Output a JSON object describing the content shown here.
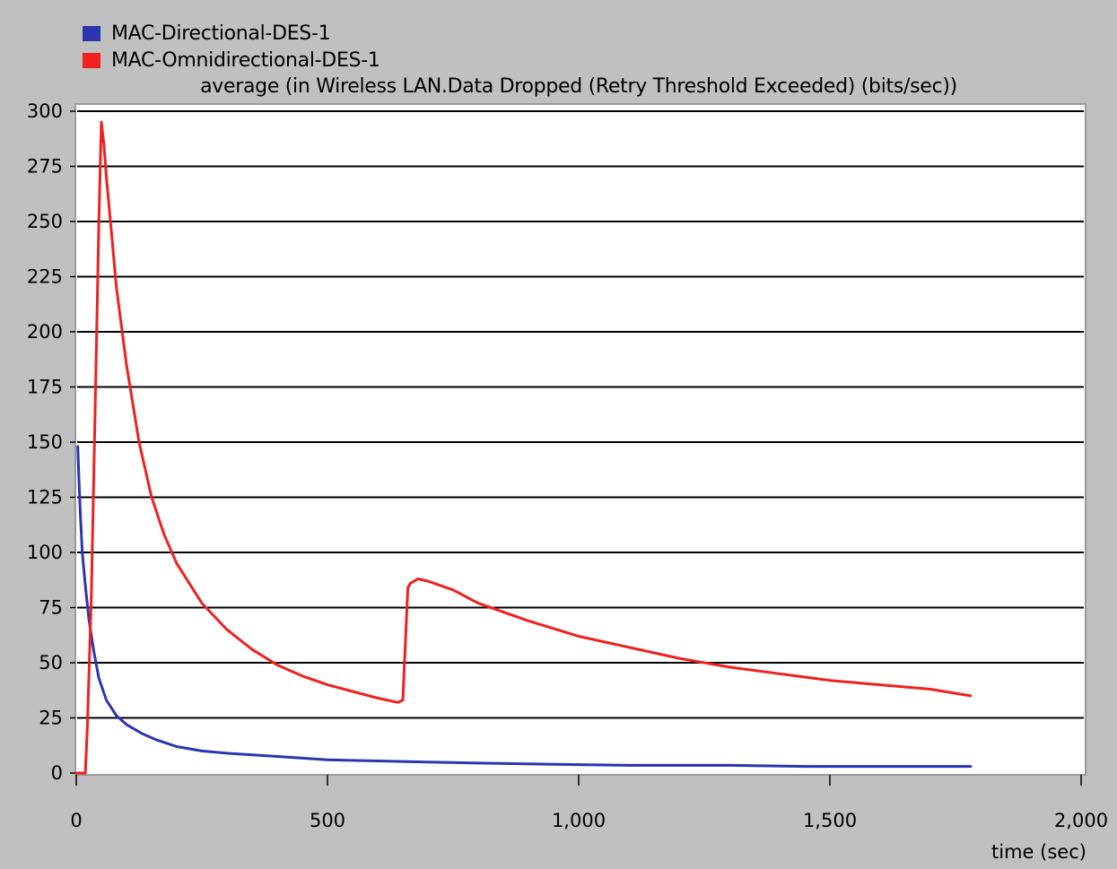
{
  "chart_data": {
    "type": "line",
    "title": "average (in Wireless LAN.Data Dropped (Retry Threshold Exceeded) (bits/sec))",
    "xlabel": "time (sec)",
    "ylabel": "",
    "xlim": [
      0,
      2000
    ],
    "ylim": [
      0,
      300
    ],
    "x_ticks": [
      0,
      500,
      1000,
      1500,
      2000
    ],
    "x_tick_labels": [
      "0",
      "500",
      "1,000",
      "1,500",
      "2,000"
    ],
    "y_ticks": [
      0,
      25,
      50,
      75,
      100,
      125,
      150,
      175,
      200,
      225,
      250,
      275,
      300
    ],
    "y_tick_labels": [
      "0",
      "25",
      "50",
      "75",
      "100",
      "125",
      "150",
      "175",
      "200",
      "225",
      "250",
      "275",
      "300"
    ],
    "grid": "horizontal",
    "legend": "top-left",
    "series": [
      {
        "name": "MAC-Directional-DES-1",
        "color": "#2b35b0",
        "x": [
          3,
          5,
          8,
          12,
          18,
          25,
          35,
          45,
          60,
          80,
          100,
          130,
          160,
          200,
          250,
          300,
          400,
          500,
          600,
          700,
          800,
          950,
          1100,
          1300,
          1450,
          1600,
          1780
        ],
        "y": [
          148,
          135,
          118,
          100,
          85,
          70,
          55,
          43,
          33,
          26,
          22,
          18,
          15,
          12,
          10,
          9,
          7.5,
          6,
          5.5,
          5,
          4.5,
          4,
          3.5,
          3.5,
          3,
          3,
          3
        ]
      },
      {
        "name": "MAC-Omnidirectional-DES-1",
        "color": "#ee2020",
        "x": [
          0,
          18,
          22,
          30,
          38,
          45,
          50,
          55,
          60,
          70,
          80,
          100,
          125,
          150,
          175,
          200,
          250,
          300,
          350,
          400,
          450,
          500,
          550,
          600,
          640,
          650,
          660,
          665,
          680,
          700,
          750,
          800,
          900,
          1000,
          1100,
          1200,
          1300,
          1400,
          1500,
          1600,
          1700,
          1780
        ],
        "y": [
          0,
          0,
          20,
          80,
          170,
          250,
          295,
          285,
          270,
          245,
          220,
          185,
          150,
          125,
          108,
          95,
          77,
          65,
          56,
          49,
          44,
          40,
          37,
          34,
          32,
          33,
          84,
          86,
          88,
          87,
          83,
          77,
          69,
          62,
          57,
          52,
          48,
          45,
          42,
          40,
          38,
          35
        ]
      }
    ]
  }
}
